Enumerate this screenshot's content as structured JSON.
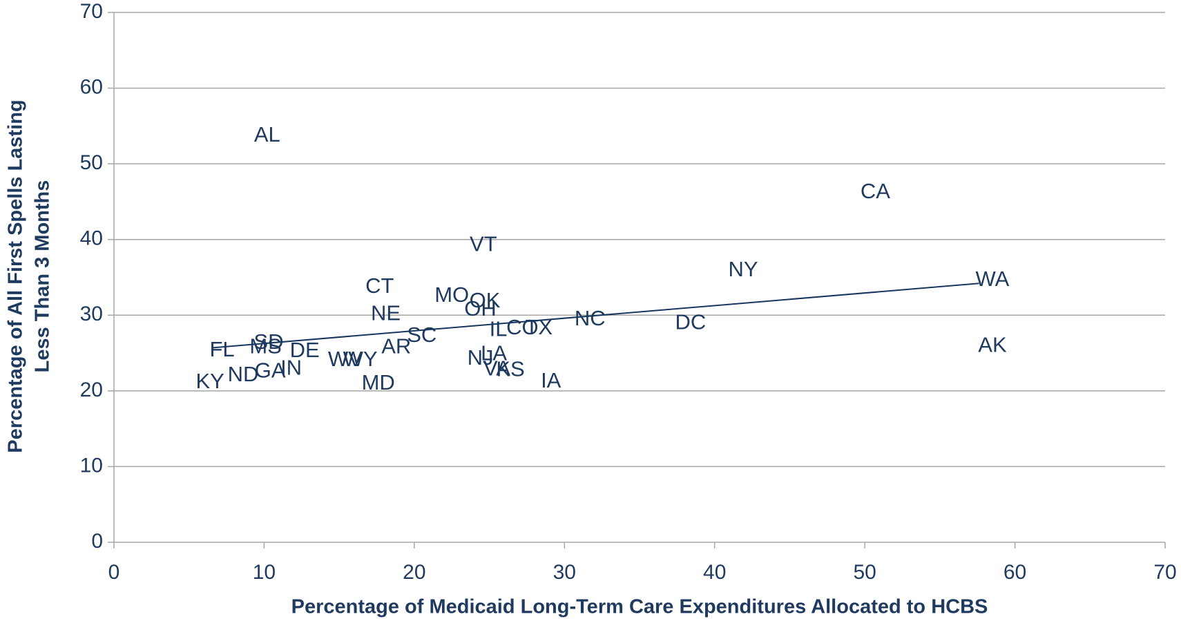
{
  "chart_data": {
    "type": "scatter",
    "xlabel": "Percentage of Medicaid Long-Term Care Expenditures Allocated to HCBS",
    "ylabel": [
      "Percentage of All First Spells Lasting",
      "Less Than 3 Months"
    ],
    "labels": [
      "AL",
      "CA",
      "VT",
      "NY",
      "WA",
      "CT",
      "MO",
      "OK",
      "OH",
      "NE",
      "NC",
      "DC",
      "IL",
      "CO",
      "TX",
      "SC",
      "AK",
      "SD",
      "MS",
      "AR",
      "FL",
      "DE",
      "WV",
      "WY",
      "NJ",
      "LA",
      "VA",
      "KS",
      "IN",
      "GA",
      "ND",
      "MD",
      "IA",
      "KY"
    ],
    "x": [
      10.2,
      50.7,
      24.6,
      41.9,
      58.5,
      17.7,
      22.5,
      24.7,
      24.4,
      18.1,
      31.7,
      38.4,
      25.6,
      27.2,
      28.3,
      20.5,
      58.5,
      10.3,
      10.1,
      18.8,
      7.2,
      12.7,
      15.4,
      16.4,
      24.4,
      25.3,
      25.5,
      26.4,
      11.8,
      10.4,
      8.6,
      17.6,
      29.1,
      6.4
    ],
    "y": [
      53.7,
      46.2,
      39.2,
      35.9,
      34.6,
      33.7,
      32.5,
      31.8,
      30.7,
      30.1,
      29.4,
      28.9,
      28.0,
      28.2,
      28.2,
      27.2,
      25.9,
      26.3,
      25.7,
      25.7,
      25.3,
      25.2,
      24.0,
      24.0,
      24.2,
      24.8,
      22.8,
      22.7,
      22.9,
      22.5,
      22.0,
      20.9,
      21.2,
      21.1
    ],
    "trendline": {
      "x": [
        6.6,
        57.6
      ],
      "y": [
        25.7,
        34.2
      ]
    },
    "color": "#1f3a5f",
    "line_color": "#17375e",
    "xlim": [
      0,
      70
    ],
    "ylim": [
      0,
      70
    ],
    "xticks": [
      0,
      10,
      20,
      30,
      40,
      50,
      60,
      70
    ],
    "yticks": [
      0,
      10,
      20,
      30,
      40,
      50,
      60,
      70
    ],
    "grid": true
  }
}
